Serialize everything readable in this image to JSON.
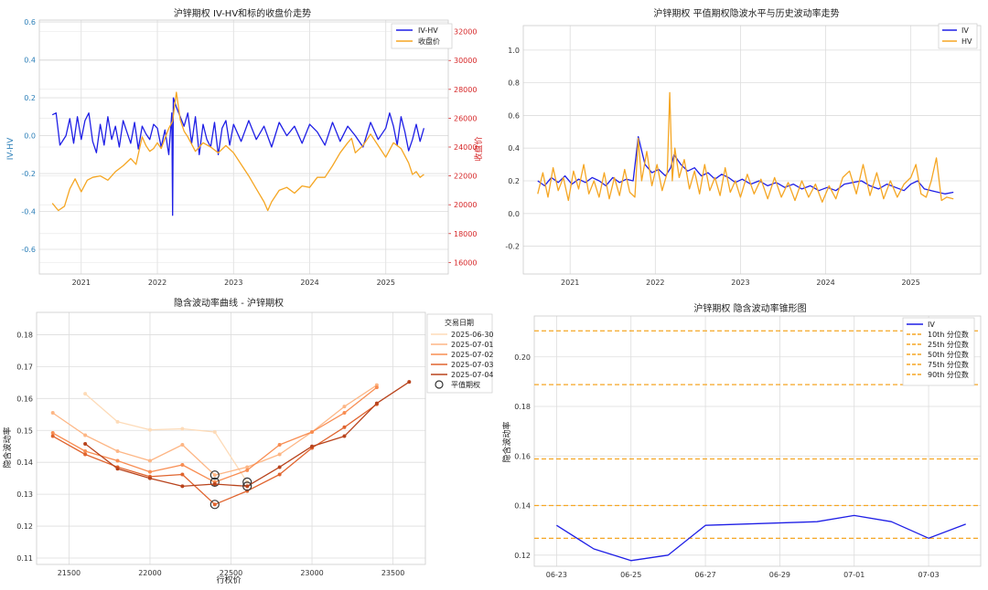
{
  "chart_data": [
    {
      "id": "p1",
      "type": "line",
      "title": "沪锌期权 IV-HV和标的收盘价走势",
      "xlabel": "",
      "ylabel": "IV-HV",
      "y2label": "收盘价",
      "xlim": [
        2020.45,
        2025.82
      ],
      "ylim": [
        -0.73,
        0.61
      ],
      "y2lim": [
        15200,
        32800
      ],
      "xticks": [
        2021,
        2022,
        2023,
        2024,
        2025
      ],
      "xtick_labels": [
        "2021",
        "2022",
        "2023",
        "2024",
        "2025"
      ],
      "yticks": [
        -0.6,
        -0.4,
        -0.2,
        0.0,
        0.2,
        0.4,
        0.6
      ],
      "ytick_labels": [
        "-0.6",
        "-0.4",
        "-0.2",
        "0.0",
        "0.2",
        "0.4",
        "0.6"
      ],
      "y2ticks": [
        16000,
        18000,
        20000,
        22000,
        24000,
        26000,
        28000,
        30000,
        32000
      ],
      "y2tick_labels": [
        "16000",
        "18000",
        "20000",
        "22000",
        "24000",
        "26000",
        "28000",
        "30000",
        "32000"
      ],
      "grid": true,
      "legend_position": "top-right",
      "colors": {
        "ivhv": "#1f1fe6",
        "close": "#f5a623",
        "left_axis": "#2c7fb8",
        "right_axis": "#d62728"
      },
      "series": [
        {
          "key": "ivhv",
          "name": "IV-HV",
          "axis": "left",
          "color": "#1f1fe6",
          "x": [
            2020.62,
            2020.67,
            2020.72,
            2020.8,
            2020.85,
            2020.9,
            2020.95,
            2021.0,
            2021.05,
            2021.1,
            2021.15,
            2021.2,
            2021.25,
            2021.3,
            2021.35,
            2021.4,
            2021.45,
            2021.5,
            2021.55,
            2021.6,
            2021.65,
            2021.7,
            2021.75,
            2021.8,
            2021.85,
            2021.9,
            2021.95,
            2022.0,
            2022.05,
            2022.1,
            2022.15,
            2022.19,
            2022.2,
            2022.21,
            2022.25,
            2022.3,
            2022.35,
            2022.4,
            2022.45,
            2022.5,
            2022.55,
            2022.6,
            2022.65,
            2022.7,
            2022.75,
            2022.8,
            2022.85,
            2022.9,
            2022.95,
            2023.0,
            2023.1,
            2023.2,
            2023.3,
            2023.4,
            2023.5,
            2023.6,
            2023.7,
            2023.8,
            2023.9,
            2024.0,
            2024.1,
            2024.2,
            2024.3,
            2024.4,
            2024.5,
            2024.6,
            2024.7,
            2024.8,
            2024.9,
            2025.0,
            2025.05,
            2025.1,
            2025.15,
            2025.2,
            2025.25,
            2025.3,
            2025.35,
            2025.4,
            2025.45,
            2025.5
          ],
          "y": [
            0.11,
            0.12,
            -0.05,
            0.0,
            0.09,
            -0.04,
            0.1,
            -0.02,
            0.08,
            0.12,
            -0.03,
            -0.09,
            0.06,
            -0.05,
            0.1,
            -0.02,
            0.05,
            -0.06,
            0.08,
            0.02,
            -0.04,
            0.07,
            -0.07,
            0.05,
            0.01,
            -0.02,
            0.06,
            0.04,
            -0.06,
            0.03,
            -0.1,
            0.12,
            -0.42,
            0.2,
            0.15,
            0.1,
            0.05,
            0.12,
            -0.04,
            0.1,
            -0.1,
            0.06,
            -0.02,
            -0.06,
            0.07,
            -0.1,
            0.04,
            0.08,
            -0.05,
            0.06,
            -0.03,
            0.08,
            -0.02,
            0.05,
            -0.06,
            0.07,
            0.0,
            0.05,
            -0.04,
            0.06,
            0.02,
            -0.05,
            0.07,
            -0.03,
            0.05,
            0.0,
            -0.06,
            0.07,
            -0.02,
            0.04,
            0.12,
            0.05,
            -0.05,
            0.1,
            0.02,
            -0.08,
            -0.02,
            0.06,
            -0.03,
            0.04
          ]
        },
        {
          "key": "close",
          "name": "收盘价",
          "axis": "right",
          "color": "#f5a623",
          "x": [
            2020.62,
            2020.7,
            2020.78,
            2020.85,
            2020.92,
            2021.0,
            2021.08,
            2021.15,
            2021.25,
            2021.35,
            2021.45,
            2021.55,
            2021.65,
            2021.72,
            2021.8,
            2021.85,
            2021.9,
            2021.95,
            2022.0,
            2022.05,
            2022.1,
            2022.15,
            2022.2,
            2022.25,
            2022.3,
            2022.35,
            2022.4,
            2022.5,
            2022.6,
            2022.7,
            2022.8,
            2022.9,
            2023.0,
            2023.1,
            2023.2,
            2023.3,
            2023.4,
            2023.45,
            2023.5,
            2023.6,
            2023.7,
            2023.8,
            2023.9,
            2024.0,
            2024.1,
            2024.2,
            2024.3,
            2024.4,
            2024.5,
            2024.55,
            2024.6,
            2024.7,
            2024.8,
            2024.9,
            2025.0,
            2025.1,
            2025.2,
            2025.3,
            2025.35,
            2025.4,
            2025.45,
            2025.5
          ],
          "y": [
            20100,
            19600,
            19900,
            21100,
            21800,
            20900,
            21700,
            21900,
            22000,
            21700,
            22300,
            22700,
            23200,
            22800,
            24700,
            24100,
            23700,
            23900,
            24300,
            23900,
            24600,
            25300,
            25800,
            27800,
            25900,
            25100,
            24700,
            23700,
            24300,
            24000,
            23600,
            24100,
            23600,
            22800,
            22000,
            21100,
            20200,
            19600,
            20200,
            21000,
            21200,
            20800,
            21300,
            21200,
            21900,
            21900,
            22700,
            23600,
            24300,
            24600,
            23600,
            24100,
            24900,
            24100,
            23300,
            24300,
            23900,
            22900,
            22100,
            22300,
            21900,
            22100
          ]
        }
      ]
    },
    {
      "id": "p2",
      "type": "line",
      "title": "沪锌期权 平值期权隐波水平与历史波动率走势",
      "xlabel": "",
      "ylabel": "",
      "xlim": [
        2020.45,
        2025.82
      ],
      "ylim": [
        -0.37,
        1.15
      ],
      "xticks": [
        2021,
        2022,
        2023,
        2024,
        2025
      ],
      "xtick_labels": [
        "2021",
        "2022",
        "2023",
        "2024",
        "2025"
      ],
      "yticks": [
        -0.2,
        0.0,
        0.2,
        0.4,
        0.6,
        0.8,
        1.0
      ],
      "ytick_labels": [
        "-0.2",
        "0.0",
        "0.2",
        "0.4",
        "0.6",
        "0.8",
        "1.0"
      ],
      "grid": true,
      "legend_position": "top-right",
      "colors": {
        "iv": "#1f1fe6",
        "hv": "#f5a623"
      },
      "series": [
        {
          "key": "iv",
          "name": "IV",
          "color": "#1f1fe6",
          "x": [
            2020.62,
            2020.7,
            2020.78,
            2020.86,
            2020.94,
            2021.02,
            2021.1,
            2021.18,
            2021.26,
            2021.34,
            2021.42,
            2021.5,
            2021.58,
            2021.66,
            2021.74,
            2021.8,
            2021.88,
            2021.96,
            2022.04,
            2022.12,
            2022.18,
            2022.22,
            2022.3,
            2022.38,
            2022.46,
            2022.54,
            2022.62,
            2022.7,
            2022.78,
            2022.86,
            2022.94,
            2023.02,
            2023.12,
            2023.22,
            2023.32,
            2023.42,
            2023.52,
            2023.62,
            2023.72,
            2023.82,
            2023.92,
            2024.02,
            2024.12,
            2024.22,
            2024.32,
            2024.42,
            2024.52,
            2024.62,
            2024.72,
            2024.82,
            2024.92,
            2025.0,
            2025.08,
            2025.16,
            2025.24,
            2025.32,
            2025.4,
            2025.5
          ],
          "y": [
            0.2,
            0.17,
            0.22,
            0.19,
            0.23,
            0.18,
            0.21,
            0.19,
            0.22,
            0.2,
            0.17,
            0.22,
            0.19,
            0.21,
            0.2,
            0.47,
            0.3,
            0.25,
            0.27,
            0.23,
            0.28,
            0.36,
            0.3,
            0.26,
            0.28,
            0.23,
            0.25,
            0.21,
            0.24,
            0.22,
            0.19,
            0.21,
            0.18,
            0.2,
            0.17,
            0.19,
            0.16,
            0.18,
            0.15,
            0.17,
            0.14,
            0.16,
            0.14,
            0.18,
            0.19,
            0.2,
            0.17,
            0.15,
            0.18,
            0.16,
            0.14,
            0.18,
            0.2,
            0.15,
            0.14,
            0.13,
            0.12,
            0.13
          ]
        },
        {
          "key": "hv",
          "name": "HV",
          "color": "#f5a623",
          "x": [
            2020.62,
            2020.68,
            2020.74,
            2020.8,
            2020.86,
            2020.92,
            2020.98,
            2021.04,
            2021.1,
            2021.16,
            2021.22,
            2021.28,
            2021.34,
            2021.4,
            2021.46,
            2021.52,
            2021.58,
            2021.64,
            2021.7,
            2021.76,
            2021.8,
            2021.84,
            2021.9,
            2021.96,
            2022.02,
            2022.08,
            2022.14,
            2022.17,
            2022.2,
            2022.23,
            2022.28,
            2022.34,
            2022.4,
            2022.46,
            2022.52,
            2022.58,
            2022.64,
            2022.7,
            2022.76,
            2022.82,
            2022.88,
            2022.94,
            2023.0,
            2023.08,
            2023.16,
            2023.24,
            2023.32,
            2023.4,
            2023.48,
            2023.56,
            2023.64,
            2023.72,
            2023.8,
            2023.88,
            2023.96,
            2024.04,
            2024.12,
            2024.2,
            2024.28,
            2024.36,
            2024.44,
            2024.52,
            2024.6,
            2024.68,
            2024.76,
            2024.84,
            2024.92,
            2025.0,
            2025.06,
            2025.12,
            2025.18,
            2025.24,
            2025.3,
            2025.36,
            2025.42,
            2025.5
          ],
          "y": [
            0.12,
            0.25,
            0.1,
            0.28,
            0.14,
            0.22,
            0.08,
            0.26,
            0.15,
            0.3,
            0.12,
            0.2,
            0.1,
            0.25,
            0.09,
            0.22,
            0.11,
            0.27,
            0.13,
            0.1,
            0.46,
            0.2,
            0.38,
            0.17,
            0.3,
            0.14,
            0.25,
            0.74,
            0.2,
            0.4,
            0.22,
            0.33,
            0.15,
            0.26,
            0.12,
            0.3,
            0.14,
            0.22,
            0.11,
            0.28,
            0.13,
            0.2,
            0.1,
            0.24,
            0.12,
            0.21,
            0.09,
            0.22,
            0.1,
            0.19,
            0.08,
            0.2,
            0.1,
            0.18,
            0.07,
            0.17,
            0.09,
            0.22,
            0.26,
            0.12,
            0.3,
            0.11,
            0.25,
            0.09,
            0.2,
            0.1,
            0.18,
            0.22,
            0.3,
            0.12,
            0.1,
            0.2,
            0.34,
            0.08,
            0.1,
            0.09
          ]
        }
      ]
    },
    {
      "id": "p3",
      "type": "line",
      "title": "隐含波动率曲线 - 沪锌期权",
      "xlabel": "行权价",
      "ylabel": "隐含波动率",
      "xlim": [
        21300,
        23700
      ],
      "ylim": [
        0.108,
        0.187
      ],
      "xticks": [
        21500,
        22000,
        22500,
        23000,
        23500
      ],
      "xtick_labels": [
        "21500",
        "22000",
        "22500",
        "23000",
        "23500"
      ],
      "yticks": [
        0.11,
        0.12,
        0.13,
        0.14,
        0.15,
        0.16,
        0.17,
        0.18
      ],
      "ytick_labels": [
        "0.11",
        "0.12",
        "0.13",
        "0.14",
        "0.15",
        "0.16",
        "0.17",
        "0.18"
      ],
      "grid": true,
      "legend_position": "upper right, outside",
      "legend_title": "交易日期",
      "atm_label": "平值期权",
      "series": [
        {
          "name": "2025-06-30",
          "color": "#fddbb8",
          "x": [
            21600,
            21800,
            22000,
            22200,
            22400,
            22600
          ],
          "y": [
            0.1615,
            0.1527,
            0.1502,
            0.1505,
            0.1495,
            0.1338
          ],
          "atm_x": 22600,
          "atm_y": 0.1338
        },
        {
          "name": "2025-07-01",
          "color": "#fdb685",
          "x": [
            21400,
            21600,
            21800,
            22000,
            22200,
            22400,
            22600,
            22800,
            23000,
            23200,
            23400
          ],
          "y": [
            0.1555,
            0.1485,
            0.1435,
            0.1405,
            0.1455,
            0.136,
            0.1385,
            0.1425,
            0.1495,
            0.1575,
            0.1642
          ],
          "atm_x": 22400,
          "atm_y": 0.136
        },
        {
          "name": "2025-07-02",
          "color": "#f88d52",
          "x": [
            21400,
            21600,
            21800,
            22000,
            22200,
            22400,
            22600,
            22800,
            23000,
            23200,
            23400
          ],
          "y": [
            0.1492,
            0.1435,
            0.1405,
            0.137,
            0.1392,
            0.1338,
            0.1375,
            0.1455,
            0.1495,
            0.1555,
            0.1635
          ],
          "atm_x": 22400,
          "atm_y": 0.1338
        },
        {
          "name": "2025-07-03",
          "color": "#e0642e",
          "x": [
            21400,
            21600,
            21800,
            22000,
            22200,
            22400,
            22600,
            22800,
            23000,
            23200,
            23400
          ],
          "y": [
            0.1482,
            0.1425,
            0.1385,
            0.1355,
            0.1362,
            0.1268,
            0.131,
            0.1362,
            0.1445,
            0.151,
            0.1582
          ],
          "atm_x": 22400,
          "atm_y": 0.1268
        },
        {
          "name": "2025-07-04",
          "color": "#b8431c",
          "x": [
            21600,
            21800,
            22000,
            22200,
            22400,
            22600,
            22800,
            23000,
            23200,
            23400,
            23600
          ],
          "y": [
            0.1458,
            0.138,
            0.135,
            0.1325,
            0.1332,
            0.1325,
            0.1385,
            0.145,
            0.1482,
            0.1585,
            0.1652
          ],
          "atm_x": 22600,
          "atm_y": 0.1325
        }
      ]
    },
    {
      "id": "p4",
      "type": "line",
      "title": "沪锌期权 隐含波动率锥形图",
      "xlabel": "",
      "ylabel": "隐含波动率",
      "xlim": [
        -0.6,
        11.4
      ],
      "ylim": [
        0.1155,
        0.2165
      ],
      "xticks": [
        0,
        2,
        4,
        6,
        8,
        10
      ],
      "xtick_labels": [
        "06-23",
        "06-25",
        "06-27",
        "06-29",
        "07-01",
        "07-03"
      ],
      "yticks": [
        0.12,
        0.14,
        0.16,
        0.18,
        0.2
      ],
      "ytick_labels": [
        "0.12",
        "0.14",
        "0.16",
        "0.18",
        "0.20"
      ],
      "grid": true,
      "legend_position": "top-right",
      "colors": {
        "iv": "#1f1fe6",
        "percentile": "#f5a623"
      },
      "series": [
        {
          "name": "IV",
          "color": "#1f1fe6",
          "x": [
            0,
            1,
            2,
            3,
            4,
            7,
            8,
            9,
            10,
            11
          ],
          "y": [
            0.132,
            0.1225,
            0.1178,
            0.12,
            0.132,
            0.1335,
            0.136,
            0.1335,
            0.1268,
            0.1325
          ]
        }
      ],
      "percentiles": [
        {
          "name": "10th 分位数",
          "value": 0.1268
        },
        {
          "name": "25th 分位数",
          "value": 0.14
        },
        {
          "name": "50th 分位数",
          "value": 0.1588
        },
        {
          "name": "75th 分位数",
          "value": 0.1888
        },
        {
          "name": "90th 分位数",
          "value": 0.2105
        }
      ]
    }
  ]
}
